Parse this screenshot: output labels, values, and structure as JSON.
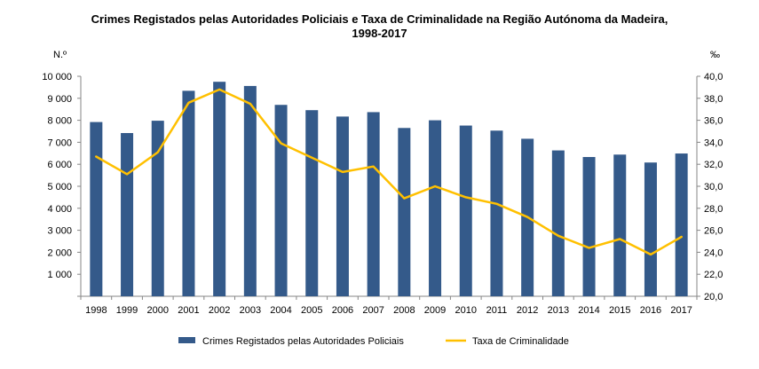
{
  "title_line1": "Crimes Registados pelas Autoridades Policiais e Taxa de Criminalidade na Região Autónoma da Madeira,",
  "title_line2": "1998-2017",
  "chart_data": {
    "type": "bar",
    "categories": [
      "1998",
      "1999",
      "2000",
      "2001",
      "2002",
      "2003",
      "2004",
      "2005",
      "2006",
      "2007",
      "2008",
      "2009",
      "2010",
      "2011",
      "2012",
      "2013",
      "2014",
      "2015",
      "2016",
      "2017"
    ],
    "series": [
      {
        "name": "Crimes Registados pelas Autoridades Policiais",
        "type": "bar",
        "axis": "left",
        "color": "#345a8a",
        "values": [
          7920,
          7420,
          7980,
          9340,
          9750,
          9560,
          8700,
          8460,
          8170,
          8370,
          7650,
          8000,
          7760,
          7530,
          7160,
          6630,
          6330,
          6440,
          6080,
          6490
        ]
      },
      {
        "name": "Taxa de Criminalidade",
        "type": "line",
        "axis": "right",
        "color": "#ffc000",
        "values": [
          32.7,
          31.1,
          33.1,
          37.6,
          38.8,
          37.5,
          33.9,
          32.6,
          31.3,
          31.8,
          28.9,
          30.0,
          29.0,
          28.4,
          27.2,
          25.5,
          24.4,
          25.2,
          23.8,
          25.4
        ]
      }
    ],
    "y_left": {
      "label": "N.º",
      "ylim": [
        0,
        10000
      ],
      "ticks": [
        "1 000",
        "2 000",
        "3 000",
        "4 000",
        "5 000",
        "6 000",
        "7 000",
        "8 000",
        "9 000",
        "10 000"
      ],
      "tick_values": [
        1000,
        2000,
        3000,
        4000,
        5000,
        6000,
        7000,
        8000,
        9000,
        10000
      ]
    },
    "y_right": {
      "label": "‰",
      "ylim": [
        20,
        40
      ],
      "ticks": [
        "20,0",
        "22,0",
        "24,0",
        "26,0",
        "28,0",
        "30,0",
        "32,0",
        "34,0",
        "36,0",
        "38,0",
        "40,0"
      ],
      "tick_values": [
        20,
        22,
        24,
        26,
        28,
        30,
        32,
        34,
        36,
        38,
        40
      ]
    },
    "grid": false,
    "legend": "bottom"
  }
}
